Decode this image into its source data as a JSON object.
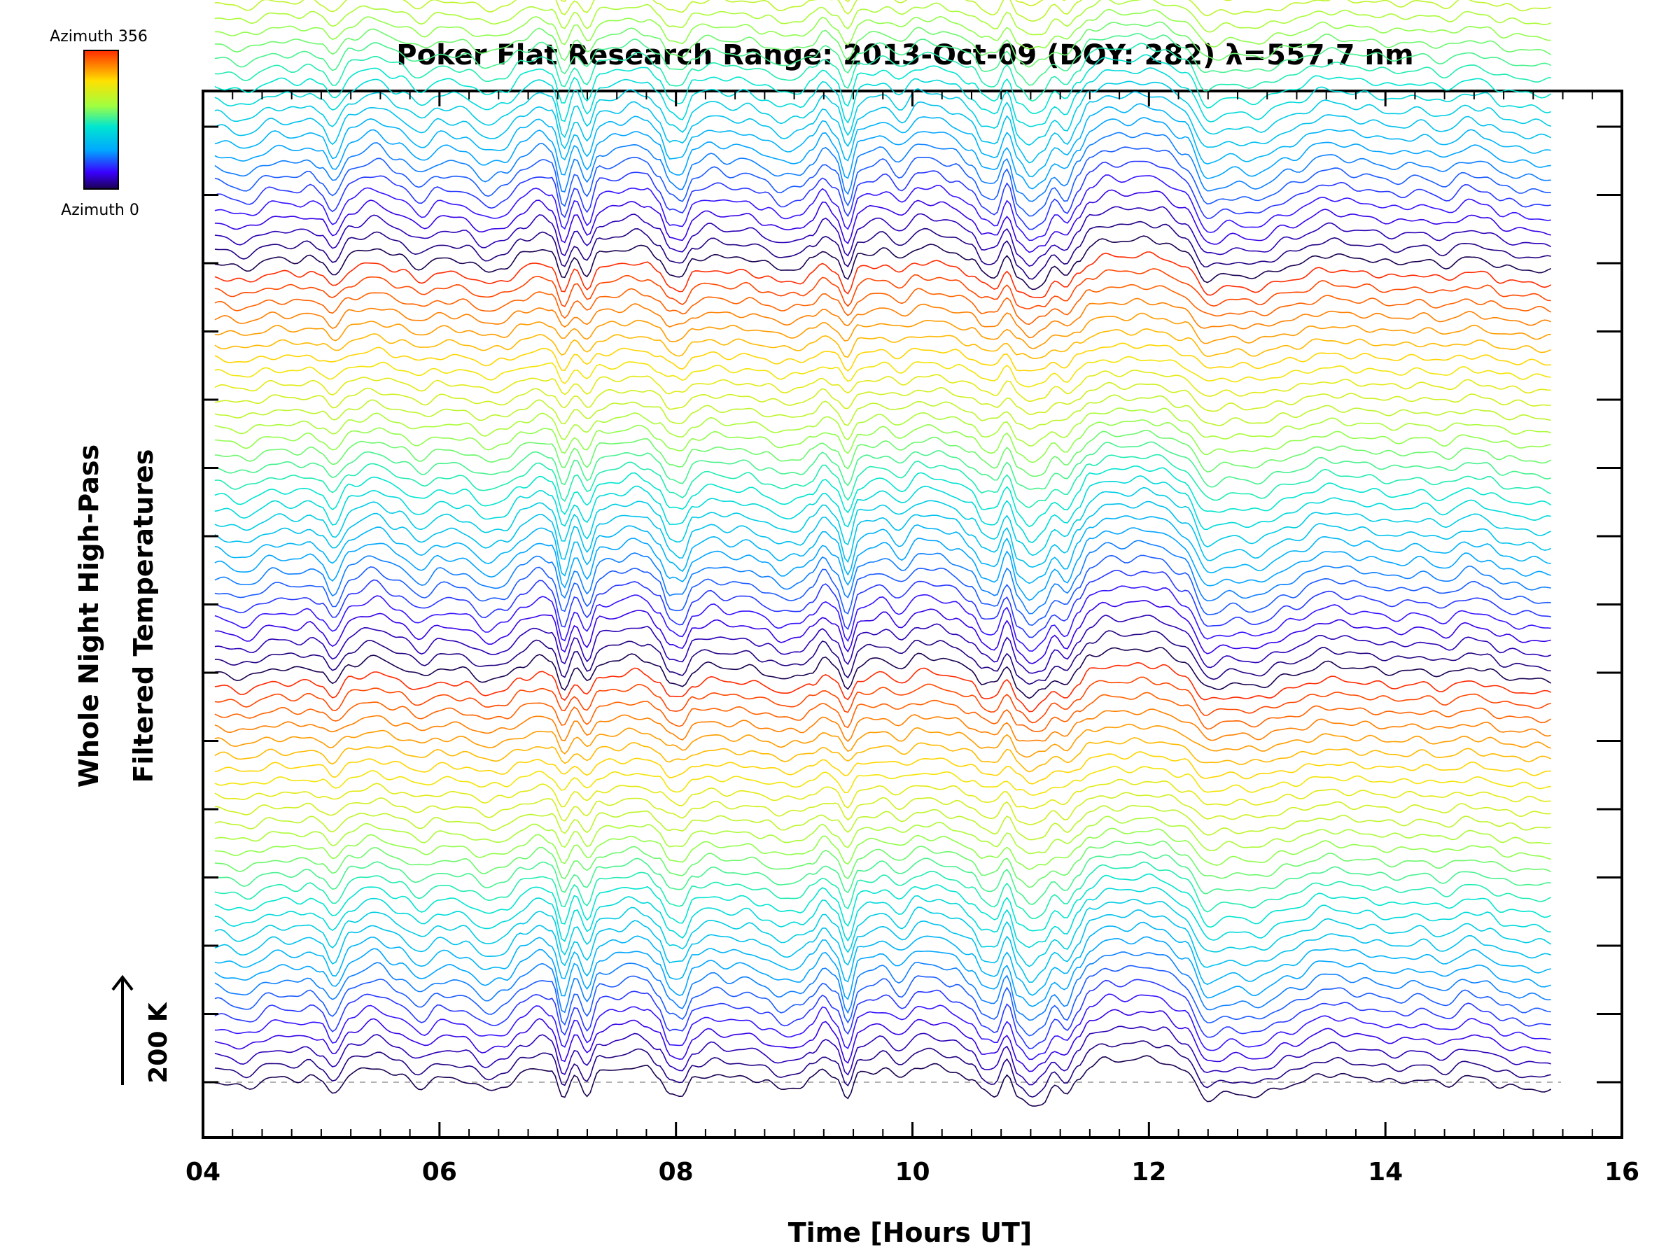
{
  "chart_data": {
    "type": "line",
    "title": "Poker Flat Research Range: 2013-Oct-09 (DOY: 282) λ=557.7 nm",
    "xlabel": "Time [Hours UT]",
    "ylabel": [
      "Whole Night High-Pass",
      "Filtered Temperatures"
    ],
    "xlim": [
      4,
      16
    ],
    "x_ticks": [
      "04",
      "06",
      "08",
      "10",
      "12",
      "14",
      "16"
    ],
    "x_tick_values": [
      4,
      6,
      8,
      10,
      12,
      14,
      16
    ],
    "x_minor_step": 0.25,
    "y_tick_count": 15,
    "data_range_hours": [
      4.1,
      15.4
    ],
    "series_count": 120,
    "series_offset_K": 20,
    "scale_bar": {
      "label": "200 K",
      "value_K": 200
    },
    "baseline": "dashed",
    "colorbar": {
      "label_top": "Azimuth 356",
      "label_bottom": "Azimuth 0",
      "azimuth_min": 0,
      "azimuth_max": 356,
      "colormap": "rainbow"
    },
    "base_profile": {
      "description": "common wave signature (K) repeated for each azimuth trace with vertical offset",
      "time": [
        4.1,
        4.35,
        4.6,
        4.8,
        4.9,
        5.0,
        5.1,
        5.25,
        5.45,
        5.65,
        5.85,
        6.0,
        6.2,
        6.4,
        6.55,
        6.7,
        6.85,
        6.95,
        7.05,
        7.15,
        7.25,
        7.35,
        7.5,
        7.65,
        7.75,
        7.85,
        7.95,
        8.05,
        8.15,
        8.3,
        8.45,
        8.6,
        8.75,
        8.9,
        9.05,
        9.15,
        9.25,
        9.35,
        9.45,
        9.55,
        9.65,
        9.75,
        9.9,
        10.05,
        10.2,
        10.35,
        10.5,
        10.6,
        10.7,
        10.8,
        10.9,
        11.0,
        11.1,
        11.2,
        11.3,
        11.4,
        11.5,
        11.65,
        11.8,
        11.95,
        12.1,
        12.3,
        12.5,
        12.7,
        12.9,
        13.2,
        13.5,
        13.8,
        14.1,
        14.3,
        14.5,
        14.7,
        14.85,
        15.0,
        15.2,
        15.4
      ],
      "temperature_K": [
        0,
        -10,
        8,
        5,
        10,
        2,
        -20,
        15,
        28,
        12,
        -8,
        8,
        5,
        -15,
        -8,
        15,
        28,
        20,
        -30,
        10,
        -20,
        18,
        22,
        30,
        25,
        10,
        -20,
        -25,
        5,
        15,
        8,
        10,
        0,
        -12,
        -8,
        5,
        25,
        10,
        -30,
        15,
        20,
        25,
        8,
        30,
        28,
        20,
        5,
        -18,
        -22,
        12,
        -30,
        -45,
        -35,
        -10,
        -22,
        5,
        30,
        42,
        40,
        44,
        40,
        20,
        -30,
        -20,
        -25,
        -5,
        15,
        8,
        0,
        5,
        -5,
        10,
        5,
        -8,
        -12,
        -15
      ]
    }
  }
}
